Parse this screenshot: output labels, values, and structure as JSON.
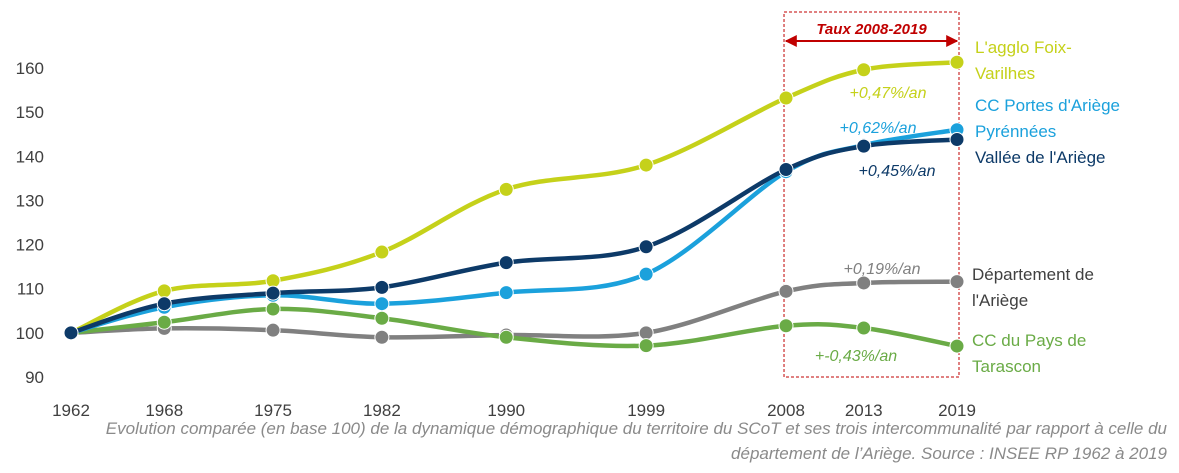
{
  "chart_data": {
    "type": "line",
    "x": [
      1962,
      1968,
      1975,
      1982,
      1990,
      1999,
      2008,
      2013,
      2019
    ],
    "xticks": [
      1962,
      1968,
      1975,
      1982,
      1990,
      1999,
      2008,
      2013,
      2019
    ],
    "xlim": [
      1962,
      2019
    ],
    "ylim": [
      88,
      165
    ],
    "yticks": [
      90,
      100,
      110,
      120,
      130,
      140,
      150,
      160
    ],
    "grid": false,
    "highlight": {
      "label": "Taux 2008-2019",
      "from": 2008,
      "to": 2019,
      "color": "#c00000"
    },
    "series": [
      {
        "name": "L'agglo Foix-Varilhes",
        "color": "#c5d11a",
        "rate_label": "+0,47%/an",
        "values": [
          100,
          109.5,
          111.8,
          118.3,
          132.5,
          138,
          153.2,
          159.6,
          161.3
        ]
      },
      {
        "name": "CC Portes d'Ariège Pyrénnées",
        "color": "#1ba1dc",
        "rate_label": "+0,62%/an",
        "values": [
          100,
          105.8,
          108.5,
          106.6,
          109.1,
          113.3,
          136.5,
          142.5,
          146
        ]
      },
      {
        "name": "Vallée de l'Ariège",
        "color": "#0d3a68",
        "rate_label": "+0,45%/an",
        "values": [
          100,
          106.6,
          109,
          110.3,
          115.9,
          119.5,
          137,
          142.3,
          143.8
        ]
      },
      {
        "name": "Département de l'Ariège",
        "color": "#808080",
        "rate_label": "+0,19%/an",
        "values": [
          100,
          101,
          100.6,
          99,
          99.5,
          100,
          109.4,
          111.3,
          111.6
        ]
      },
      {
        "name": "CC du Pays de Tarascon",
        "color": "#6aab46",
        "rate_label": "+-0,43%/an",
        "values": [
          100,
          102.4,
          105.4,
          103.3,
          99,
          97.1,
          101.6,
          101.1,
          97
        ]
      }
    ],
    "caption": "Evolution comparée (en base 100)  de la dynamique démographique du territoire du SCoT et ses trois intercommunalité par rapport à celle du département de l’Ariège. Source : INSEE RP 1962 à 2019"
  }
}
